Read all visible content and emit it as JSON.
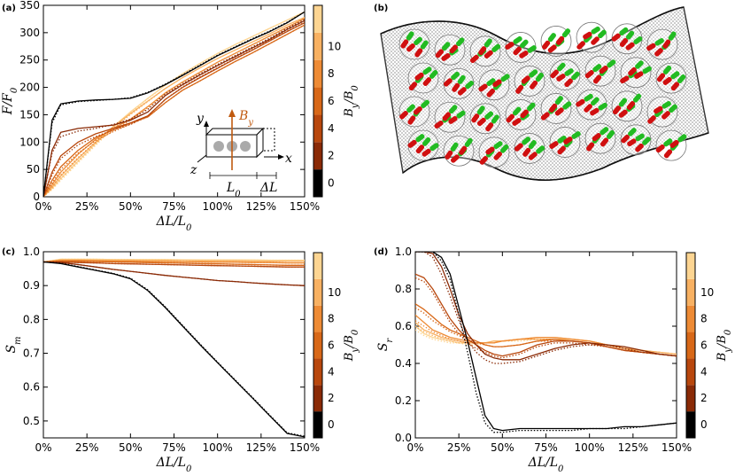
{
  "panels": {
    "a": "(a)",
    "b": "(b)",
    "c": "(c)",
    "d": "(d)"
  },
  "colorbar": {
    "label": "B_y/B_0",
    "ticks": [
      "0",
      "2",
      "4",
      "6",
      "8",
      "10"
    ],
    "colors": [
      "#000000",
      "#8a2a06",
      "#b8470d",
      "#d86818",
      "#ee8b35",
      "#f8b162",
      "#fdd592"
    ]
  },
  "inset": {
    "y": "y",
    "z": "z",
    "x": "x",
    "by": "B_y",
    "l0": "L_0",
    "dl": "ΔL"
  },
  "chart_data": [
    {
      "panel": "a",
      "type": "line",
      "xlabel": "ΔL/L_0",
      "ylabel": "F/F_0",
      "xlim": [
        0,
        150
      ],
      "ylim": [
        0,
        350
      ],
      "xticks": [
        "0%",
        "25%",
        "50%",
        "75%",
        "100%",
        "125%",
        "150%"
      ],
      "yticks": [
        "0",
        "50",
        "100",
        "150",
        "200",
        "250",
        "300",
        "350"
      ],
      "x": [
        0,
        5,
        10,
        20,
        30,
        40,
        50,
        60,
        70,
        80,
        90,
        100,
        110,
        120,
        130,
        140,
        150
      ],
      "series": [
        {
          "color": "#000000",
          "solid": [
            0,
            140,
            170,
            175,
            177,
            178,
            180,
            190,
            205,
            222,
            240,
            258,
            273,
            288,
            302,
            318,
            338
          ],
          "dotted": [
            0,
            135,
            168,
            174,
            176,
            178,
            181,
            191,
            206,
            223,
            241,
            259,
            274,
            289,
            303,
            319,
            338
          ]
        },
        {
          "color": "#8a2a06",
          "solid": [
            0,
            85,
            118,
            125,
            128,
            131,
            140,
            155,
            185,
            205,
            223,
            240,
            256,
            272,
            288,
            306,
            322
          ],
          "dotted": [
            0,
            80,
            110,
            120,
            125,
            132,
            142,
            160,
            188,
            207,
            225,
            242,
            258,
            274,
            290,
            308,
            324
          ]
        },
        {
          "color": "#b8470d",
          "solid": [
            0,
            45,
            75,
            100,
            115,
            125,
            135,
            148,
            178,
            200,
            218,
            235,
            252,
            268,
            285,
            302,
            318
          ],
          "dotted": [
            0,
            40,
            70,
            95,
            110,
            122,
            132,
            148,
            178,
            201,
            219,
            236,
            253,
            269,
            286,
            303,
            319
          ]
        },
        {
          "color": "#d86818",
          "solid": [
            0,
            30,
            55,
            85,
            108,
            122,
            135,
            146,
            172,
            195,
            212,
            230,
            247,
            263,
            280,
            297,
            314
          ],
          "dotted": [
            0,
            25,
            50,
            80,
            103,
            119,
            133,
            146,
            172,
            195,
            212,
            230,
            247,
            263,
            280,
            297,
            314
          ]
        },
        {
          "color": "#ee8b35",
          "solid": [
            0,
            22,
            45,
            78,
            105,
            125,
            142,
            165,
            190,
            210,
            228,
            246,
            262,
            278,
            294,
            310,
            326
          ],
          "dotted": [
            0,
            18,
            40,
            72,
            100,
            121,
            140,
            163,
            189,
            210,
            228,
            246,
            262,
            278,
            294,
            310,
            326
          ]
        },
        {
          "color": "#f8b162",
          "solid": [
            0,
            18,
            38,
            70,
            100,
            128,
            152,
            175,
            198,
            218,
            236,
            253,
            268,
            283,
            298,
            314,
            328
          ],
          "dotted": [
            0,
            15,
            34,
            66,
            97,
            125,
            150,
            174,
            198,
            218,
            236,
            253,
            268,
            283,
            298,
            314,
            328
          ]
        },
        {
          "color": "#fdd592",
          "solid": [
            0,
            15,
            33,
            65,
            97,
            128,
            155,
            180,
            204,
            225,
            244,
            262,
            278,
            293,
            308,
            323,
            338
          ],
          "dotted": [
            0,
            13,
            30,
            62,
            94,
            125,
            153,
            179,
            204,
            225,
            244,
            262,
            278,
            293,
            308,
            323,
            338
          ]
        }
      ]
    },
    {
      "panel": "c",
      "type": "line",
      "xlabel": "ΔL/L_0",
      "ylabel": "S_m",
      "xlim": [
        0,
        150
      ],
      "ylim": [
        0.45,
        1.0
      ],
      "xticks": [
        "0%",
        "25%",
        "50%",
        "75%",
        "100%",
        "125%",
        "150%"
      ],
      "yticks": [
        "0.5",
        "0.6",
        "0.7",
        "0.8",
        "0.9",
        "1.0"
      ],
      "x": [
        0,
        10,
        20,
        30,
        40,
        50,
        60,
        70,
        80,
        90,
        100,
        110,
        120,
        130,
        140,
        150
      ],
      "series": [
        {
          "color": "#000000",
          "solid": [
            0.97,
            0.965,
            0.955,
            0.945,
            0.935,
            0.92,
            0.885,
            0.835,
            0.78,
            0.725,
            0.672,
            0.62,
            0.568,
            0.515,
            0.463,
            0.453
          ],
          "dotted": [
            0.97,
            0.966,
            0.956,
            0.946,
            0.936,
            0.922,
            0.887,
            0.837,
            0.782,
            0.727,
            0.674,
            0.622,
            0.57,
            0.517,
            0.465,
            0.455
          ]
        },
        {
          "color": "#8a2a06",
          "solid": [
            0.97,
            0.968,
            0.962,
            0.955,
            0.948,
            0.942,
            0.936,
            0.93,
            0.925,
            0.92,
            0.915,
            0.912,
            0.908,
            0.905,
            0.902,
            0.9
          ],
          "dotted": [
            0.97,
            0.968,
            0.962,
            0.955,
            0.948,
            0.942,
            0.936,
            0.93,
            0.925,
            0.92,
            0.915,
            0.912,
            0.908,
            0.905,
            0.902,
            0.9
          ]
        },
        {
          "color": "#b8470d",
          "solid": [
            0.97,
            0.97,
            0.968,
            0.967,
            0.965,
            0.964,
            0.963,
            0.962,
            0.961,
            0.96,
            0.959,
            0.958,
            0.957,
            0.956,
            0.955,
            0.955
          ],
          "dotted": [
            0.97,
            0.97,
            0.968,
            0.967,
            0.965,
            0.964,
            0.963,
            0.962,
            0.961,
            0.96,
            0.959,
            0.958,
            0.957,
            0.956,
            0.955,
            0.955
          ]
        },
        {
          "color": "#d86818",
          "solid": [
            0.97,
            0.972,
            0.972,
            0.971,
            0.97,
            0.969,
            0.968,
            0.967,
            0.966,
            0.965,
            0.964,
            0.963,
            0.962,
            0.961,
            0.96,
            0.96
          ],
          "dotted": [
            0.97,
            0.972,
            0.972,
            0.971,
            0.97,
            0.969,
            0.968,
            0.967,
            0.966,
            0.965,
            0.964,
            0.963,
            0.962,
            0.961,
            0.96,
            0.96
          ]
        },
        {
          "color": "#ee8b35",
          "solid": [
            0.97,
            0.974,
            0.974,
            0.973,
            0.972,
            0.972,
            0.971,
            0.971,
            0.97,
            0.97,
            0.969,
            0.969,
            0.968,
            0.968,
            0.967,
            0.967
          ],
          "dotted": [
            0.97,
            0.974,
            0.974,
            0.973,
            0.972,
            0.972,
            0.971,
            0.971,
            0.97,
            0.97,
            0.969,
            0.969,
            0.968,
            0.968,
            0.967,
            0.967
          ]
        },
        {
          "color": "#f8b162",
          "solid": [
            0.97,
            0.976,
            0.976,
            0.975,
            0.975,
            0.975,
            0.974,
            0.974,
            0.974,
            0.973,
            0.973,
            0.973,
            0.972,
            0.972,
            0.972,
            0.972
          ],
          "dotted": [
            0.97,
            0.976,
            0.976,
            0.975,
            0.975,
            0.975,
            0.974,
            0.974,
            0.974,
            0.973,
            0.973,
            0.973,
            0.972,
            0.972,
            0.972,
            0.972
          ]
        },
        {
          "color": "#fdd592",
          "solid": [
            0.97,
            0.978,
            0.978,
            0.978,
            0.977,
            0.977,
            0.977,
            0.977,
            0.976,
            0.976,
            0.976,
            0.976,
            0.976,
            0.975,
            0.975,
            0.975
          ],
          "dotted": [
            0.97,
            0.978,
            0.978,
            0.978,
            0.977,
            0.977,
            0.977,
            0.977,
            0.976,
            0.976,
            0.976,
            0.976,
            0.976,
            0.975,
            0.975,
            0.975
          ]
        }
      ]
    },
    {
      "panel": "d",
      "type": "line",
      "xlabel": "ΔL/L_0",
      "ylabel": "S_r",
      "xlim": [
        0,
        150
      ],
      "ylim": [
        0,
        1.0
      ],
      "xticks": [
        "0%",
        "25%",
        "50%",
        "75%",
        "100%",
        "125%",
        "150%"
      ],
      "yticks": [
        "0.0",
        "0.2",
        "0.4",
        "0.6",
        "0.8",
        "1.0"
      ],
      "x": [
        0,
        5,
        10,
        15,
        20,
        25,
        30,
        35,
        40,
        45,
        50,
        60,
        70,
        80,
        90,
        100,
        110,
        120,
        130,
        140,
        150
      ],
      "series": [
        {
          "color": "#000000",
          "solid": [
            1.0,
            1.0,
            1.0,
            0.97,
            0.88,
            0.7,
            0.52,
            0.32,
            0.12,
            0.05,
            0.04,
            0.05,
            0.05,
            0.05,
            0.05,
            0.05,
            0.05,
            0.06,
            0.06,
            0.07,
            0.08
          ],
          "dotted": [
            1.0,
            1.0,
            1.0,
            0.95,
            0.85,
            0.66,
            0.46,
            0.24,
            0.08,
            0.03,
            0.03,
            0.04,
            0.04,
            0.04,
            0.04,
            0.05,
            0.05,
            0.05,
            0.06,
            0.07,
            0.08
          ]
        },
        {
          "color": "#8a2a06",
          "solid": [
            1.0,
            1.0,
            0.99,
            0.92,
            0.8,
            0.66,
            0.56,
            0.5,
            0.45,
            0.43,
            0.42,
            0.42,
            0.45,
            0.48,
            0.5,
            0.51,
            0.5,
            0.49,
            0.47,
            0.45,
            0.44
          ],
          "dotted": [
            1.0,
            1.0,
            0.97,
            0.88,
            0.76,
            0.63,
            0.52,
            0.46,
            0.42,
            0.4,
            0.4,
            0.41,
            0.44,
            0.47,
            0.49,
            0.5,
            0.5,
            0.48,
            0.46,
            0.45,
            0.44
          ]
        },
        {
          "color": "#b8470d",
          "solid": [
            0.88,
            0.86,
            0.8,
            0.72,
            0.64,
            0.58,
            0.53,
            0.5,
            0.47,
            0.45,
            0.44,
            0.46,
            0.5,
            0.52,
            0.52,
            0.51,
            0.49,
            0.47,
            0.46,
            0.45,
            0.44
          ],
          "dotted": [
            0.86,
            0.84,
            0.78,
            0.7,
            0.62,
            0.56,
            0.51,
            0.48,
            0.46,
            0.44,
            0.43,
            0.45,
            0.49,
            0.51,
            0.51,
            0.5,
            0.49,
            0.47,
            0.46,
            0.45,
            0.44
          ]
        },
        {
          "color": "#d86818",
          "solid": [
            0.72,
            0.69,
            0.65,
            0.61,
            0.58,
            0.56,
            0.54,
            0.52,
            0.5,
            0.49,
            0.49,
            0.5,
            0.52,
            0.53,
            0.52,
            0.51,
            0.49,
            0.47,
            0.46,
            0.45,
            0.44
          ],
          "dotted": [
            0.7,
            0.67,
            0.63,
            0.6,
            0.57,
            0.55,
            0.53,
            0.51,
            0.5,
            0.49,
            0.49,
            0.5,
            0.52,
            0.52,
            0.52,
            0.51,
            0.49,
            0.47,
            0.46,
            0.45,
            0.44
          ]
        },
        {
          "color": "#ee8b35",
          "solid": [
            0.66,
            0.62,
            0.58,
            0.56,
            0.54,
            0.53,
            0.52,
            0.51,
            0.51,
            0.51,
            0.52,
            0.53,
            0.54,
            0.54,
            0.53,
            0.52,
            0.5,
            0.48,
            0.46,
            0.45,
            0.44
          ],
          "dotted": [
            0.63,
            0.6,
            0.57,
            0.55,
            0.53,
            0.52,
            0.51,
            0.51,
            0.51,
            0.51,
            0.52,
            0.53,
            0.53,
            0.53,
            0.52,
            0.51,
            0.49,
            0.47,
            0.46,
            0.45,
            0.44
          ]
        },
        {
          "color": "#f8b162",
          "solid": [
            0.62,
            0.58,
            0.56,
            0.54,
            0.53,
            0.52,
            0.51,
            0.51,
            0.51,
            0.52,
            0.52,
            0.53,
            0.54,
            0.54,
            0.53,
            0.52,
            0.5,
            0.48,
            0.47,
            0.46,
            0.45
          ],
          "dotted": [
            0.6,
            0.57,
            0.55,
            0.53,
            0.52,
            0.51,
            0.51,
            0.51,
            0.51,
            0.51,
            0.52,
            0.53,
            0.53,
            0.53,
            0.52,
            0.51,
            0.5,
            0.48,
            0.47,
            0.46,
            0.45
          ]
        },
        {
          "color": "#fdd592",
          "solid": [
            0.6,
            0.56,
            0.54,
            0.53,
            0.52,
            0.51,
            0.51,
            0.51,
            0.51,
            0.52,
            0.52,
            0.53,
            0.53,
            0.53,
            0.53,
            0.52,
            0.5,
            0.49,
            0.47,
            0.46,
            0.45
          ],
          "dotted": [
            0.58,
            0.55,
            0.53,
            0.52,
            0.51,
            0.51,
            0.5,
            0.5,
            0.51,
            0.51,
            0.52,
            0.52,
            0.53,
            0.53,
            0.52,
            0.51,
            0.5,
            0.48,
            0.47,
            0.46,
            0.45
          ]
        }
      ]
    }
  ]
}
